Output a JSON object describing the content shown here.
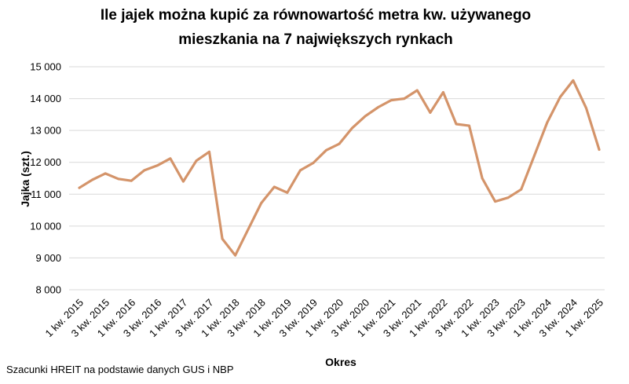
{
  "chart_data": {
    "type": "line",
    "title_lines": [
      "Ile jajek można kupić za równowartość metra kw. używanego",
      "mieszkania na 7 największych rynkach"
    ],
    "xlabel": "Okres",
    "ylabel": "Jajka (szt.)",
    "source": "Szacunki HREIT na podstawie danych GUS i NBP",
    "ylim": [
      8000,
      15000
    ],
    "yticks": [
      8000,
      9000,
      10000,
      11000,
      12000,
      13000,
      14000,
      15000
    ],
    "ytick_labels": [
      "8 000",
      "9 000",
      "10 000",
      "11 000",
      "12 000",
      "13 000",
      "14 000",
      "15 000"
    ],
    "x": [
      "1 kw. 2015",
      "2 kw. 2015",
      "3 kw. 2015",
      "4 kw. 2015",
      "1 kw. 2016",
      "2 kw. 2016",
      "3 kw. 2016",
      "4 kw. 2016",
      "1 kw. 2017",
      "2 kw. 2017",
      "3 kw. 2017",
      "4 kw. 2017",
      "1 kw. 2018",
      "2 kw. 2018",
      "3 kw. 2018",
      "4 kw. 2018",
      "1 kw. 2019",
      "2 kw. 2019",
      "3 kw. 2019",
      "4 kw. 2019",
      "1 kw. 2020",
      "2 kw. 2020",
      "3 kw. 2020",
      "4 kw. 2020",
      "1 kw. 2021",
      "2 kw. 2021",
      "3 kw. 2021",
      "4 kw. 2021",
      "1 kw. 2022",
      "2 kw. 2022",
      "3 kw. 2022",
      "4 kw. 2022",
      "1 kw. 2023",
      "2 kw. 2023",
      "3 kw. 2023",
      "4 kw. 2023",
      "1 kw. 2024",
      "2 kw. 2024",
      "3 kw. 2024",
      "4 kw. 2024",
      "1 kw. 2025"
    ],
    "xtick_labels": [
      "1 kw. 2015",
      "3 kw. 2015",
      "1 kw. 2016",
      "3 kw. 2016",
      "1 kw. 2017",
      "3 kw. 2017",
      "1 kw. 2018",
      "3 kw. 2018",
      "1 kw. 2019",
      "3 kw. 2019",
      "1 kw. 2020",
      "3 kw. 2020",
      "1 kw. 2021",
      "3 kw. 2021",
      "1 kw. 2022",
      "3 kw. 2022",
      "1 kw. 2023",
      "3 kw. 2023",
      "1 kw. 2024",
      "3 kw. 2024",
      "1 kw. 2025"
    ],
    "series": [
      {
        "color": "#d4946a",
        "values": [
          11200,
          11450,
          11650,
          11480,
          11420,
          11750,
          11900,
          12120,
          11400,
          12050,
          12330,
          9600,
          9080,
          9900,
          10720,
          11230,
          11050,
          11750,
          11980,
          12380,
          12580,
          13080,
          13450,
          13730,
          13950,
          14000,
          14260,
          13560,
          14200,
          13200,
          13150,
          11500,
          10770,
          10890,
          11150,
          12200,
          13250,
          14050,
          14570,
          13700,
          12400
        ]
      }
    ],
    "grid": true,
    "legend": "none"
  }
}
